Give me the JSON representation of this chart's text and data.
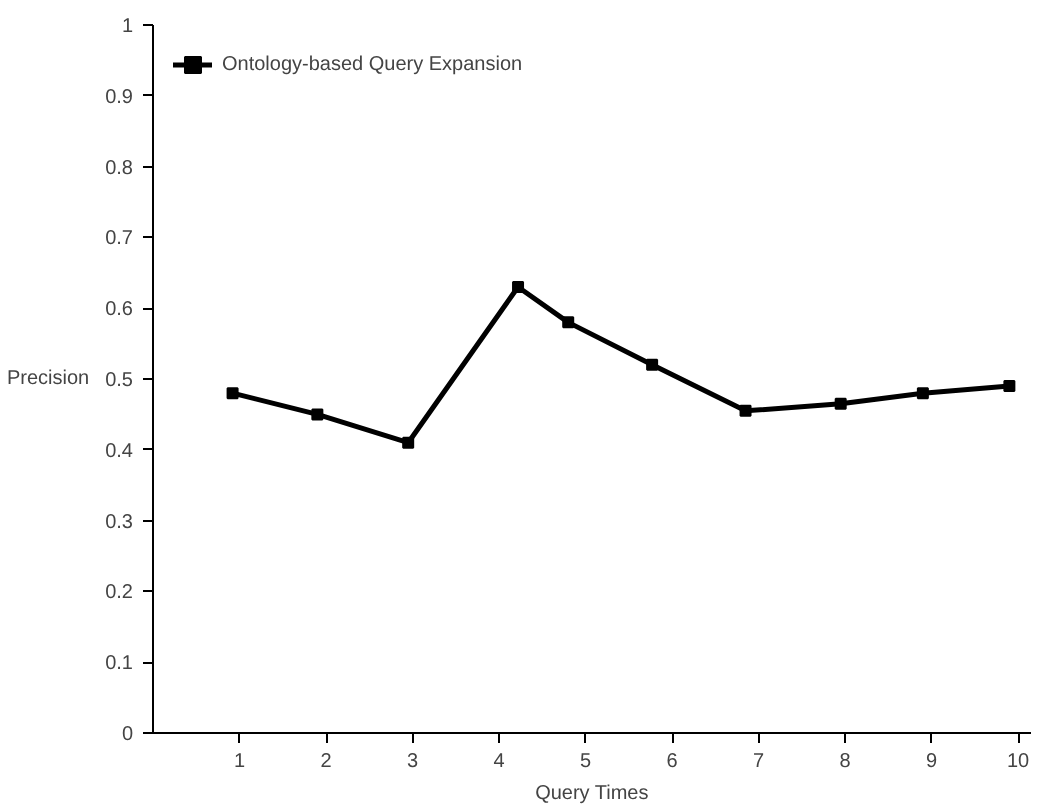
{
  "chart_data": {
    "type": "line",
    "xlabel": "Query Times",
    "ylabel": "Precision",
    "x": [
      0.92,
      1.9,
      2.95,
      4.22,
      4.8,
      5.77,
      6.85,
      7.95,
      8.9,
      9.9
    ],
    "series": [
      {
        "name": "Ontology-based Query Expansion",
        "color": "#000000",
        "values": [
          0.48,
          0.45,
          0.41,
          0.63,
          0.58,
          0.52,
          0.455,
          0.465,
          0.48,
          0.49
        ]
      }
    ],
    "xlim": [
      0,
      10.15
    ],
    "xticks": [
      1,
      2,
      3,
      4,
      5,
      6,
      7,
      8,
      9,
      10
    ],
    "ylim": [
      0,
      1
    ],
    "yticks": [
      0,
      0.1,
      0.2,
      0.3,
      0.4,
      0.5,
      0.6,
      0.7,
      0.8,
      0.9,
      1
    ],
    "grid": false,
    "legend": "top left",
    "marker": "square",
    "line_style": "solid"
  }
}
